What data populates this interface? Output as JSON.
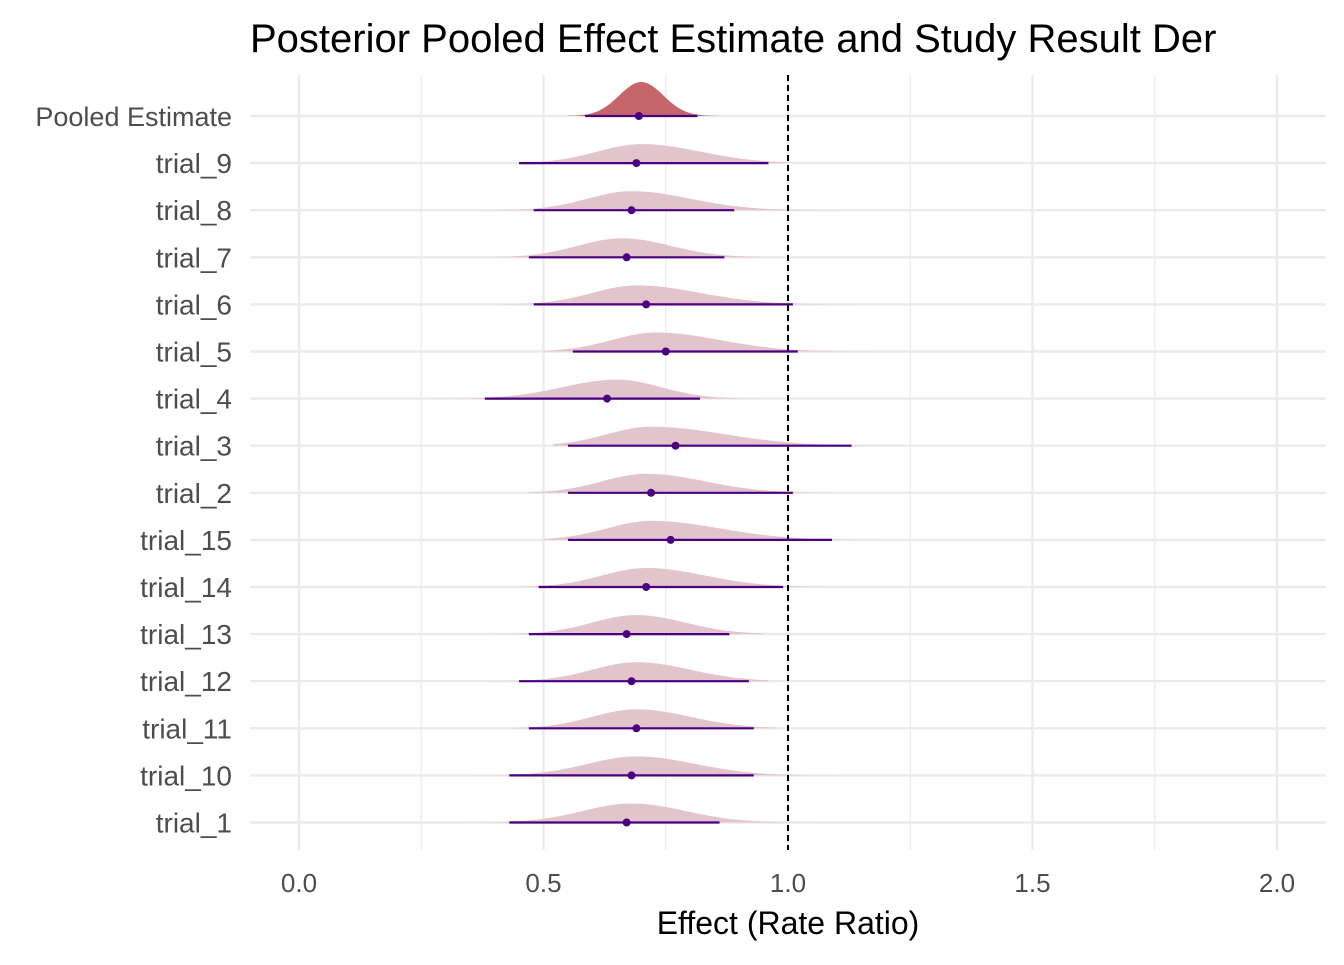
{
  "chart_data": {
    "type": "density-ridgeline with point-interval",
    "title": "Posterior Pooled Effect Estimate and Study Result Der",
    "xlabel": "Effect (Rate Ratio)",
    "ylabel": "",
    "xlim": [
      -0.1,
      2.1
    ],
    "xticks": [
      0.0,
      0.5,
      1.0,
      1.5,
      2.0
    ],
    "xtick_labels": [
      "0.0",
      "0.5",
      "1.0",
      "1.5",
      "2.0"
    ],
    "reference_line": 1.0,
    "grid": true,
    "legend": "none",
    "colors": {
      "pooled_density": "#c6666b",
      "study_density": "#e2c4cc",
      "interval": "#4b0082",
      "reference_line": "#000000",
      "grid": "#ebebeb"
    },
    "rows": [
      {
        "label": "Pooled Estimate",
        "point": 0.695,
        "lo": 0.585,
        "hi": 0.815,
        "dmin": 0.55,
        "dmax": 0.86,
        "peak": 0.7,
        "sl": 0.045,
        "sr": 0.045
      },
      {
        "label": "trial_9",
        "point": 0.69,
        "lo": 0.45,
        "hi": 0.96,
        "dmin": 0.45,
        "dmax": 1.0,
        "peak": 0.7,
        "sl": 0.09,
        "sr": 0.12
      },
      {
        "label": "trial_8",
        "point": 0.68,
        "lo": 0.48,
        "hi": 0.89,
        "dmin": 0.33,
        "dmax": 1.22,
        "peak": 0.68,
        "sl": 0.09,
        "sr": 0.12
      },
      {
        "label": "trial_7",
        "point": 0.67,
        "lo": 0.47,
        "hi": 0.87,
        "dmin": 0.34,
        "dmax": 1.08,
        "peak": 0.66,
        "sl": 0.09,
        "sr": 0.1
      },
      {
        "label": "trial_6",
        "point": 0.71,
        "lo": 0.48,
        "hi": 1.01,
        "dmin": 0.4,
        "dmax": 1.25,
        "peak": 0.69,
        "sl": 0.09,
        "sr": 0.13
      },
      {
        "label": "trial_5",
        "point": 0.75,
        "lo": 0.56,
        "hi": 1.02,
        "dmin": 0.5,
        "dmax": 1.2,
        "peak": 0.73,
        "sl": 0.09,
        "sr": 0.13
      },
      {
        "label": "trial_4",
        "point": 0.63,
        "lo": 0.38,
        "hi": 0.82,
        "dmin": 0.28,
        "dmax": 0.93,
        "peak": 0.65,
        "sl": 0.11,
        "sr": 0.09
      },
      {
        "label": "trial_3",
        "point": 0.77,
        "lo": 0.55,
        "hi": 1.13,
        "dmin": 0.52,
        "dmax": 1.3,
        "peak": 0.72,
        "sl": 0.09,
        "sr": 0.15
      },
      {
        "label": "trial_2",
        "point": 0.72,
        "lo": 0.55,
        "hi": 1.01,
        "dmin": 0.47,
        "dmax": 1.13,
        "peak": 0.71,
        "sl": 0.09,
        "sr": 0.12
      },
      {
        "label": "trial_15",
        "point": 0.76,
        "lo": 0.55,
        "hi": 1.09,
        "dmin": 0.5,
        "dmax": 1.2,
        "peak": 0.72,
        "sl": 0.09,
        "sr": 0.14
      },
      {
        "label": "trial_14",
        "point": 0.71,
        "lo": 0.49,
        "hi": 0.99,
        "dmin": 0.44,
        "dmax": 1.08,
        "peak": 0.71,
        "sl": 0.09,
        "sr": 0.12
      },
      {
        "label": "trial_13",
        "point": 0.67,
        "lo": 0.47,
        "hi": 0.88,
        "dmin": 0.4,
        "dmax": 0.95,
        "peak": 0.69,
        "sl": 0.09,
        "sr": 0.1
      },
      {
        "label": "trial_12",
        "point": 0.68,
        "lo": 0.45,
        "hi": 0.92,
        "dmin": 0.39,
        "dmax": 0.96,
        "peak": 0.69,
        "sl": 0.09,
        "sr": 0.11
      },
      {
        "label": "trial_11",
        "point": 0.69,
        "lo": 0.47,
        "hi": 0.93,
        "dmin": 0.44,
        "dmax": 0.98,
        "peak": 0.69,
        "sl": 0.09,
        "sr": 0.11
      },
      {
        "label": "trial_10",
        "point": 0.68,
        "lo": 0.43,
        "hi": 0.93,
        "dmin": 0.27,
        "dmax": 1.33,
        "peak": 0.69,
        "sl": 0.1,
        "sr": 0.12
      },
      {
        "label": "trial_1",
        "point": 0.67,
        "lo": 0.43,
        "hi": 0.86,
        "dmin": 0.3,
        "dmax": 1.1,
        "peak": 0.68,
        "sl": 0.1,
        "sr": 0.11
      }
    ]
  }
}
